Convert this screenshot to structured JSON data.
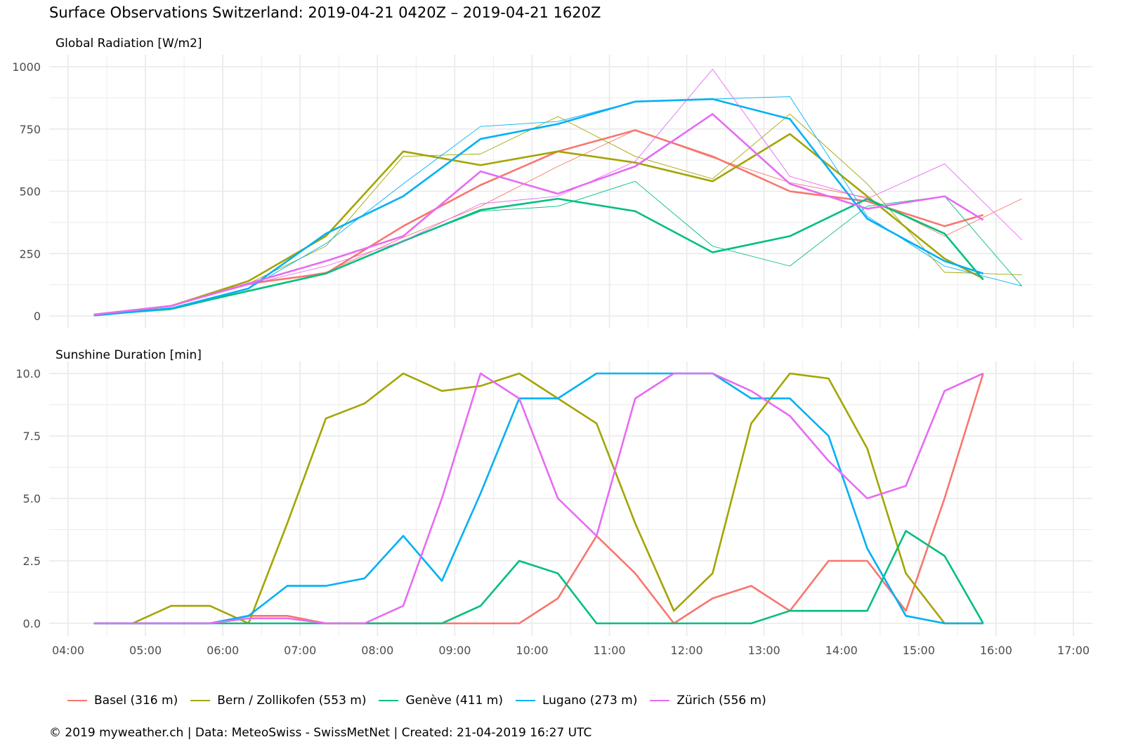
{
  "title": "Surface Observations Switzerland: 2019-04-21 0420Z – 2019-04-21 1620Z",
  "caption": "© 2019 myweather.ch | Data: MeteoSwiss - SwissMetNet | Created: 21-04-2019 16:27 UTC",
  "colors": {
    "Basel (316 m)": "#F8766D",
    "Bern / Zollikofen (553 m)": "#A3A500",
    "Genève (411 m)": "#00BF7D",
    "Lugano (273 m)": "#00B0F6",
    "Zürich (556 m)": "#E76BF3"
  },
  "legend": [
    "Basel (316 m)",
    "Bern / Zollikofen (553 m)",
    "Genève (411 m)",
    "Lugano (273 m)",
    "Zürich (556 m)"
  ],
  "chart_data": [
    {
      "type": "line",
      "title": "Global Radiation [W/m2]",
      "xlim": [
        "04:00",
        "17:00"
      ],
      "x_ticks": [
        "04:00",
        "05:00",
        "06:00",
        "07:00",
        "08:00",
        "09:00",
        "10:00",
        "11:00",
        "12:00",
        "13:00",
        "14:00",
        "15:00",
        "16:00",
        "17:00"
      ],
      "ylim": [
        0,
        1000
      ],
      "y_ticks": [
        0,
        250,
        500,
        750,
        1000
      ],
      "y_tick_labels": [
        "0",
        "250",
        "500",
        "750",
        "1000"
      ],
      "grid": true,
      "legend": "bottom",
      "x_thin": [
        "04:20",
        "05:20",
        "06:20",
        "07:20",
        "08:20",
        "09:20",
        "10:20",
        "11:20",
        "12:20",
        "13:20",
        "14:20",
        "15:20",
        "16:20"
      ],
      "x_smooth": [
        "04:20",
        "05:20",
        "06:20",
        "07:20",
        "08:20",
        "09:20",
        "10:20",
        "11:20",
        "12:20",
        "13:20",
        "14:20",
        "15:20",
        "15:50"
      ],
      "series": [
        {
          "name": "Basel (316 m)",
          "values": [
            5,
            40,
            125,
            175,
            315,
            440,
            600,
            745,
            635,
            535,
            475,
            320,
            470
          ],
          "smooth": [
            5,
            40,
            130,
            170,
            360,
            525,
            660,
            745,
            640,
            500,
            460,
            360,
            405
          ]
        },
        {
          "name": "Bern / Zollikofen (553 m)",
          "values": [
            5,
            38,
            130,
            280,
            640,
            650,
            800,
            640,
            550,
            810,
            530,
            175,
            165
          ],
          "smooth": [
            5,
            40,
            140,
            320,
            660,
            605,
            660,
            615,
            540,
            730,
            480,
            230,
            150
          ]
        },
        {
          "name": "Genève (411 m)",
          "values": [
            2,
            25,
            100,
            170,
            300,
            420,
            440,
            540,
            280,
            200,
            440,
            480,
            120
          ],
          "smooth": [
            2,
            30,
            100,
            170,
            300,
            425,
            470,
            420,
            255,
            320,
            470,
            330,
            145
          ]
        },
        {
          "name": "Lugano (273 m)",
          "values": [
            2,
            30,
            110,
            290,
            530,
            760,
            780,
            860,
            870,
            880,
            400,
            200,
            120
          ],
          "smooth": [
            2,
            30,
            110,
            330,
            480,
            710,
            770,
            860,
            870,
            790,
            390,
            220,
            170
          ]
        },
        {
          "name": "Zürich (556 m)",
          "values": [
            5,
            40,
            125,
            200,
            300,
            450,
            480,
            620,
            990,
            560,
            470,
            610,
            305
          ],
          "smooth": [
            5,
            40,
            130,
            220,
            320,
            580,
            490,
            600,
            810,
            530,
            430,
            480,
            385
          ]
        }
      ]
    },
    {
      "type": "line",
      "title": "Sunshine Duration [min]",
      "xlim": [
        "04:00",
        "17:00"
      ],
      "x_ticks": [
        "04:00",
        "05:00",
        "06:00",
        "07:00",
        "08:00",
        "09:00",
        "10:00",
        "11:00",
        "12:00",
        "13:00",
        "14:00",
        "15:00",
        "16:00",
        "17:00"
      ],
      "ylim": [
        0,
        10
      ],
      "y_ticks": [
        0,
        2.5,
        5,
        7.5,
        10
      ],
      "y_tick_labels": [
        "0.0",
        "2.5",
        "5.0",
        "7.5",
        "10.0"
      ],
      "grid": true,
      "legend": "bottom",
      "x": [
        "04:20",
        "04:50",
        "05:20",
        "05:50",
        "06:20",
        "06:50",
        "07:20",
        "07:50",
        "08:20",
        "08:50",
        "09:20",
        "09:50",
        "10:20",
        "10:50",
        "11:20",
        "11:50",
        "12:20",
        "12:50",
        "13:20",
        "13:50",
        "14:20",
        "14:50",
        "15:20",
        "15:50"
      ],
      "series": [
        {
          "name": "Basel (316 m)",
          "values": [
            0,
            0,
            0,
            0,
            0.3,
            0.3,
            0,
            0,
            0,
            0,
            0,
            0,
            1,
            3.5,
            2,
            0,
            1,
            1.5,
            0.5,
            2.5,
            2.5,
            0.5,
            5,
            10
          ]
        },
        {
          "name": "Bern / Zollikofen (553 m)",
          "values": [
            0,
            0,
            0.7,
            0.7,
            0,
            4,
            8.2,
            8.8,
            10,
            9.3,
            9.5,
            10,
            9,
            8,
            4,
            0.5,
            2,
            8,
            10,
            9.8,
            7,
            2,
            0,
            0
          ]
        },
        {
          "name": "Genève (411 m)",
          "values": [
            0,
            0,
            0,
            0,
            0,
            0,
            0,
            0,
            0,
            0,
            0.7,
            2.5,
            2,
            0,
            0,
            0,
            0,
            0,
            0.5,
            0.5,
            0.5,
            3.7,
            2.7,
            0
          ]
        },
        {
          "name": "Lugano (273 m)",
          "values": [
            0,
            0,
            0,
            0,
            0.3,
            1.5,
            1.5,
            1.8,
            3.5,
            1.7,
            5.2,
            9,
            9,
            10,
            10,
            10,
            10,
            9,
            9,
            7.5,
            3,
            0.3,
            0,
            0
          ]
        },
        {
          "name": "Zürich (556 m)",
          "values": [
            0,
            0,
            0,
            0,
            0.2,
            0.2,
            0,
            0,
            0.7,
            5,
            10,
            9,
            5,
            3.5,
            9,
            10,
            10,
            9.3,
            8.3,
            6.5,
            5,
            5.5,
            9.3,
            10
          ]
        }
      ]
    }
  ]
}
